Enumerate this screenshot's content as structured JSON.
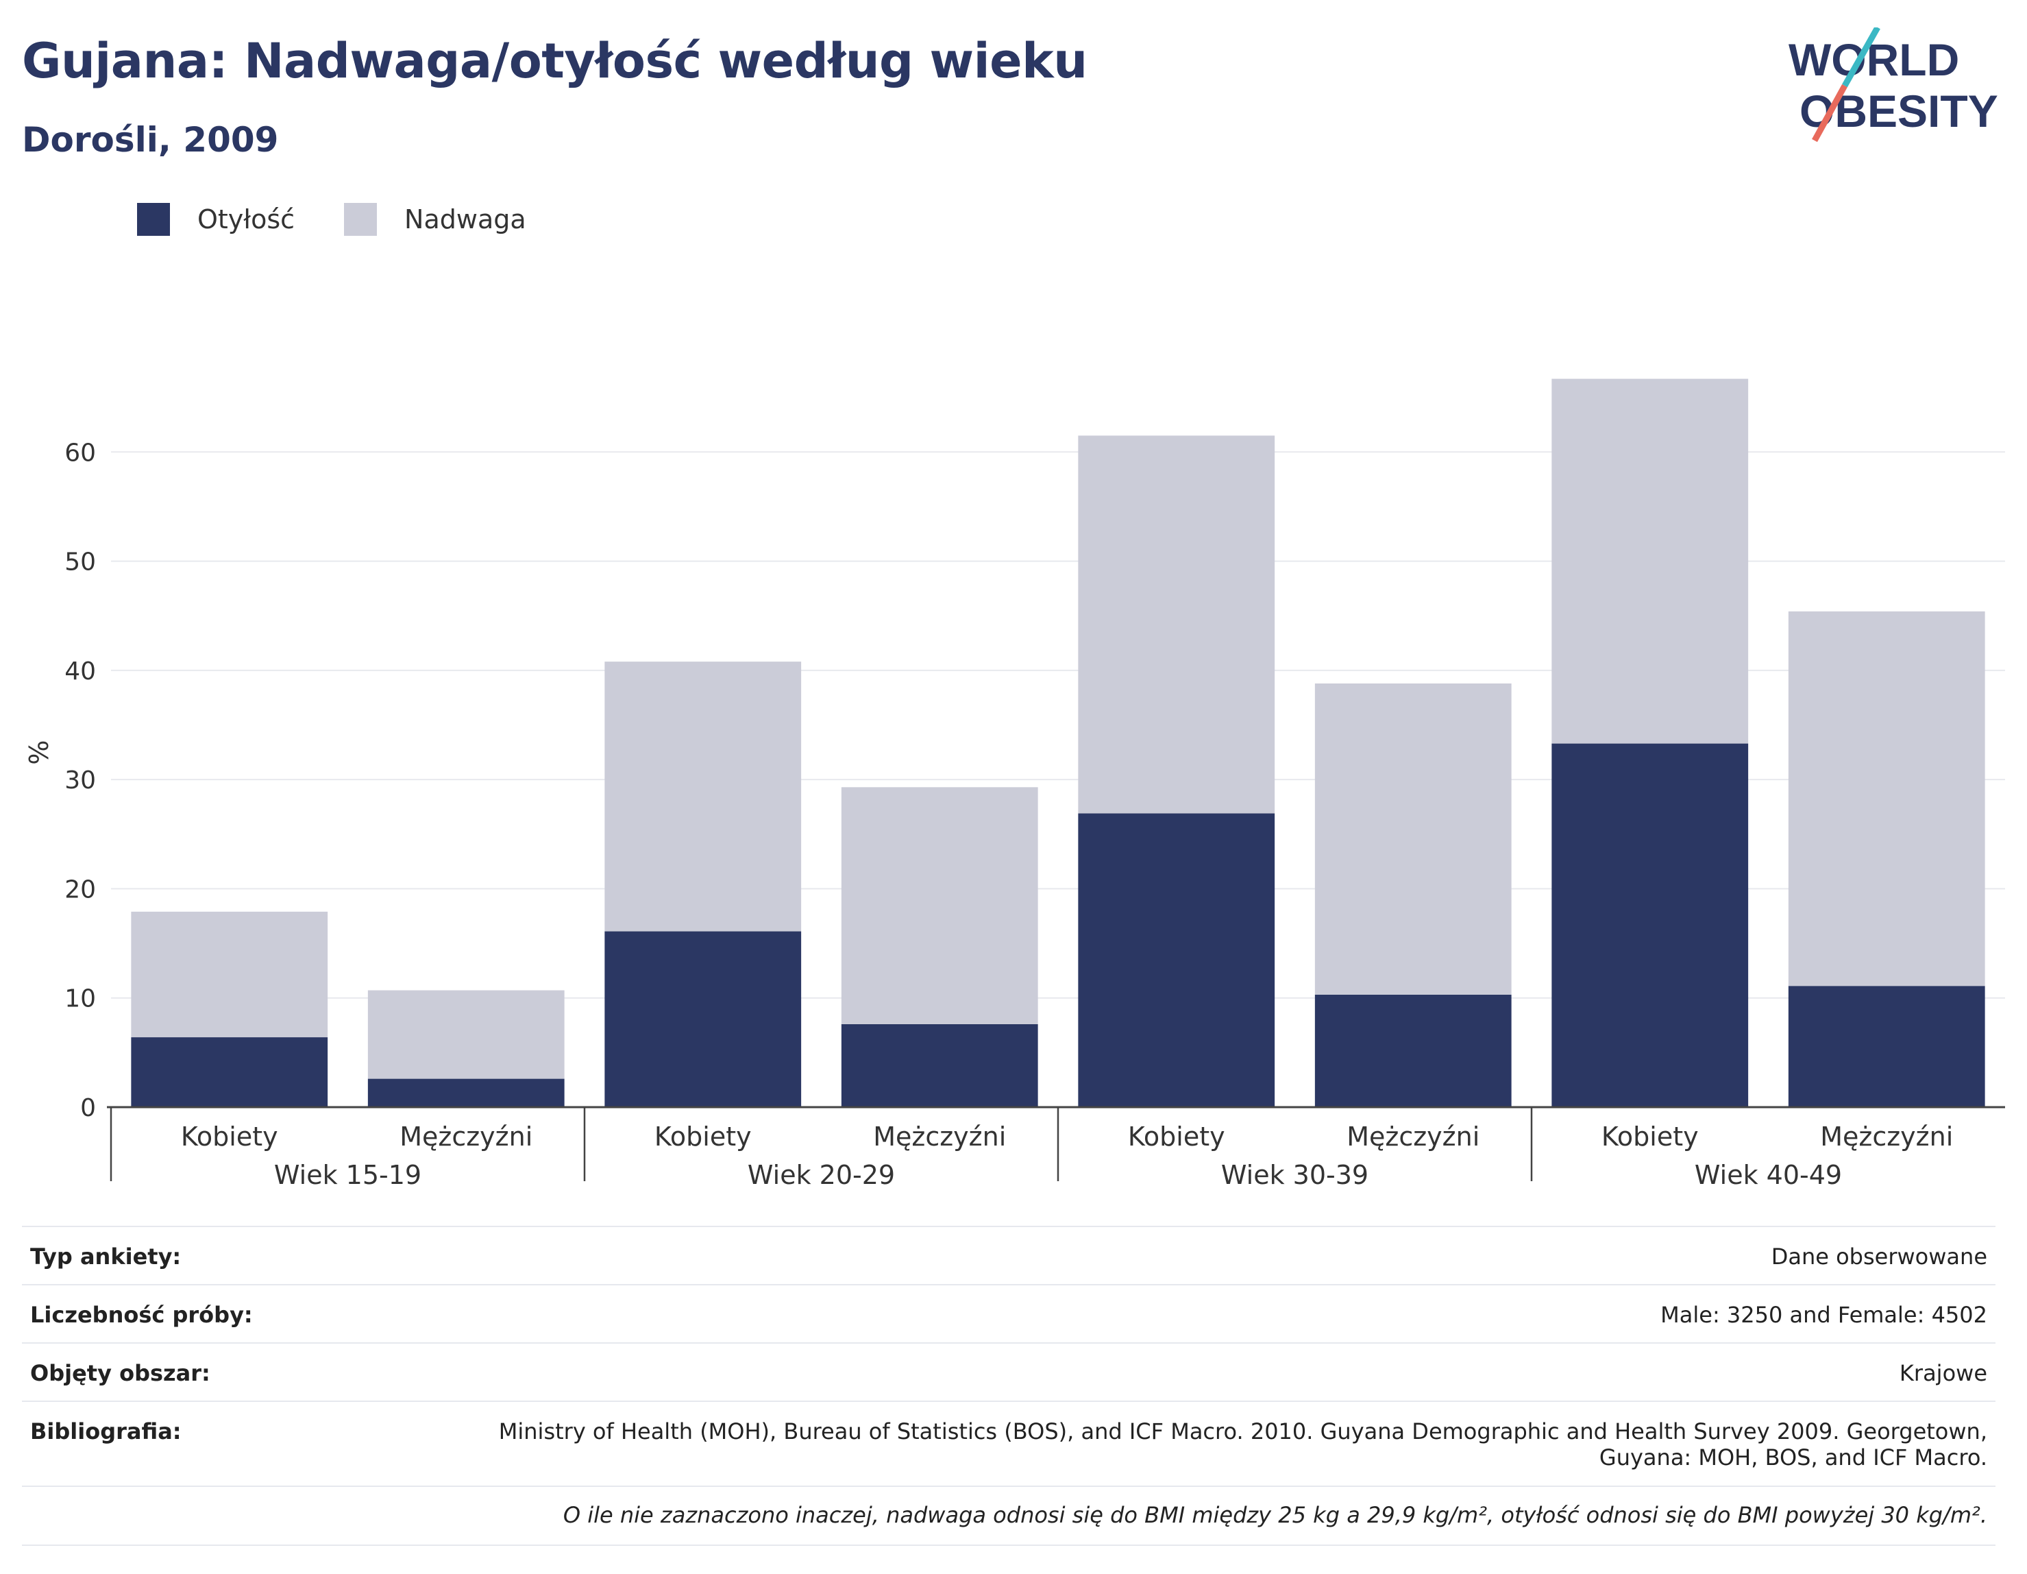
{
  "header": {
    "title": "Gujana: Nadwaga/otyłość według wieku",
    "subtitle": "Dorośli, 2009"
  },
  "logo": {
    "line1": "WORLD",
    "line2": "OBESITY"
  },
  "colors": {
    "obesity": "#2b3763",
    "overweight": "#cbccd8",
    "title": "#2b3763",
    "logo_slash_teal": "#3bb8c4",
    "logo_slash_red": "#e86a5c"
  },
  "chart_data": {
    "type": "bar",
    "stacked": true,
    "ylabel": "%",
    "ylim": [
      0,
      70
    ],
    "yticks": [
      0,
      10,
      20,
      30,
      40,
      50,
      60
    ],
    "grid": true,
    "legend_position": "top-left",
    "groups": [
      "Wiek 15-19",
      "Wiek 20-29",
      "Wiek 30-39",
      "Wiek 40-49"
    ],
    "subcategories": [
      "Kobiety",
      "Mężczyźni"
    ],
    "series": [
      {
        "name": "Otyłość",
        "values": [
          6.4,
          2.6,
          16.1,
          7.6,
          26.9,
          10.3,
          33.3,
          11.1
        ]
      },
      {
        "name": "Nadwaga",
        "values": [
          11.5,
          8.1,
          24.7,
          21.7,
          34.6,
          28.5,
          33.4,
          34.3
        ]
      }
    ]
  },
  "meta": {
    "survey_type": {
      "label": "Typ ankiety:",
      "value": "Dane obserwowane"
    },
    "sample_size": {
      "label": "Liczebność próby:",
      "value": "Male: 3250 and Female: 4502"
    },
    "area": {
      "label": "Objęty obszar:",
      "value": "Krajowe"
    },
    "bibliography": {
      "label": "Bibliografia:",
      "value_line1": "Ministry of Health (MOH), Bureau of Statistics (BOS), and ICF Macro. 2010. Guyana Demographic and Health Survey 2009. Georgetown,",
      "value_line2": "Guyana: MOH, BOS, and ICF Macro."
    },
    "note": "O ile nie zaznaczono inaczej, nadwaga odnosi się do BMI między 25 kg a 29,9 kg/m², otyłość odnosi się do BMI powyżej 30 kg/m²."
  }
}
